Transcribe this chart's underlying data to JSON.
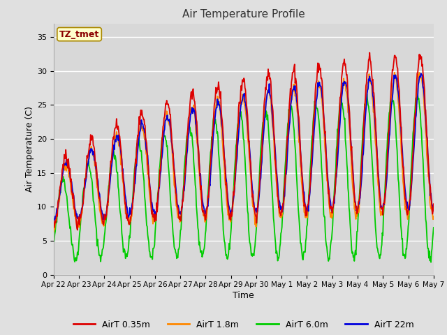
{
  "title": "Air Temperature Profile",
  "xlabel": "Time",
  "ylabel": "Air Temperature (C)",
  "ylim": [
    0,
    37
  ],
  "yticks": [
    0,
    5,
    10,
    15,
    20,
    25,
    30,
    35
  ],
  "background_color": "#e0e0e0",
  "plot_bg_color": "#d8d8d8",
  "grid_color": "#ffffff",
  "series_colors": {
    "AirT 0.35m": "#dd0000",
    "AirT 1.8m": "#ff8800",
    "AirT 6.0m": "#00cc00",
    "AirT 22m": "#0000dd"
  },
  "legend_labels": [
    "AirT 0.35m",
    "AirT 1.8m",
    "AirT 6.0m",
    "AirT 22m"
  ],
  "xtick_labels": [
    "Apr 22",
    "Apr 23",
    "Apr 24",
    "Apr 25",
    "Apr 26",
    "Apr 27",
    "Apr 28",
    "Apr 29",
    "Apr 30",
    "May 1",
    "May 2",
    "May 3",
    "May 4",
    "May 5",
    "May 6",
    "May 7"
  ],
  "annotation_text": "TZ_tmet",
  "annotation_color": "#8b0000",
  "annotation_bg": "#ffffcc",
  "annotation_border": "#aa8800"
}
